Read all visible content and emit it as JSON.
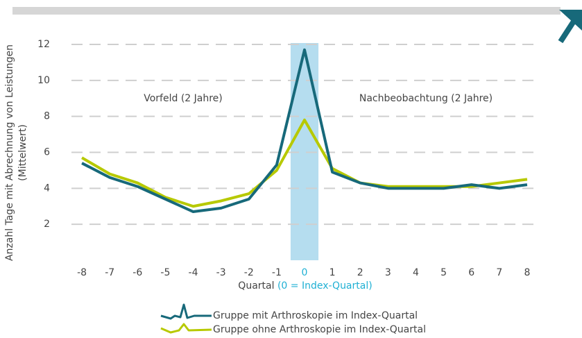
{
  "chart_data": {
    "type": "line",
    "y_label": [
      "Anzahl Tage mit Abrechnung von Leistungen",
      "(Mittelwert)"
    ],
    "x_label": "Quartal",
    "x_label_note": "(0 = Index-Quartal)",
    "annotations": [
      "Vorfeld (2 Jahre)",
      "Nachbeobachtung (2 Jahre)"
    ],
    "x": [
      -8,
      -7,
      -6,
      -5,
      -4,
      -3,
      -2,
      -1,
      0,
      1,
      2,
      3,
      4,
      5,
      6,
      7,
      8
    ],
    "xlim": [
      -8.5,
      8.5
    ],
    "xticks": [
      -8,
      -7,
      -6,
      -5,
      -4,
      -3,
      -2,
      -1,
      0,
      1,
      2,
      3,
      4,
      5,
      6,
      7,
      8
    ],
    "ylim": [
      0,
      12
    ],
    "yticks": [
      2,
      4,
      6,
      8,
      10,
      12
    ],
    "grid": true,
    "highlight_band": [
      -0.5,
      0.5
    ],
    "highlight_color": "#b5ddef",
    "series": [
      {
        "name": "Gruppe mit Arthroskopie im Index-Quartal",
        "color": "#17697a",
        "values": [
          5.4,
          4.6,
          4.1,
          3.4,
          2.7,
          2.9,
          3.4,
          5.3,
          11.7,
          4.9,
          4.3,
          4.0,
          4.0,
          4.0,
          4.2,
          4.0,
          4.2
        ]
      },
      {
        "name": "Gruppe ohne Arthroskopie im Index-Quartal",
        "color": "#b7c900",
        "values": [
          5.7,
          4.8,
          4.3,
          3.5,
          3.0,
          3.3,
          3.7,
          5.0,
          7.8,
          5.1,
          4.3,
          4.1,
          4.1,
          4.1,
          4.1,
          4.3,
          4.5
        ]
      }
    ]
  }
}
